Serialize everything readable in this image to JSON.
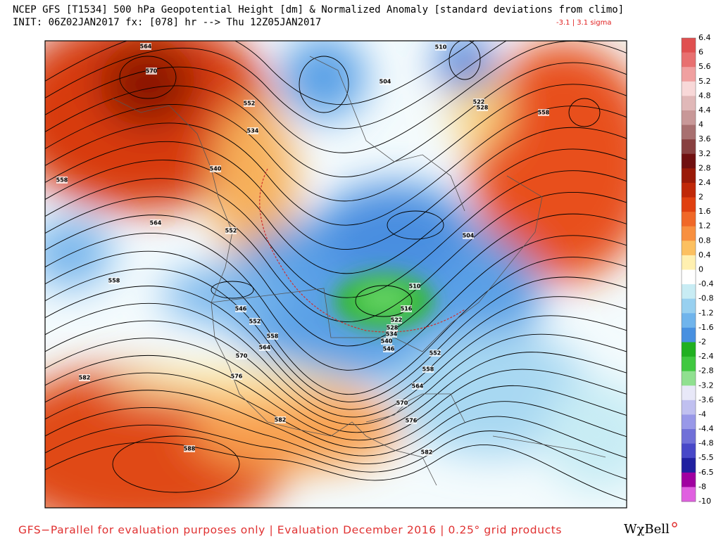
{
  "header": {
    "title": "NCEP GFS [T1534] 500 hPa Geopotential Height [dm] & Normalized Anomaly [standard deviations from climo]",
    "init": "INIT: 06Z02JAN2017 fx: [078] hr --> Thu 12Z05JAN2017",
    "range": "-3.1 | 3.1 sigma"
  },
  "colorbar": {
    "labels": [
      "6.4",
      "6",
      "5.6",
      "5.2",
      "4.8",
      "4.4",
      "4",
      "3.6",
      "3.2",
      "2.8",
      "2.4",
      "2",
      "1.6",
      "1.2",
      "0.8",
      "0.4",
      "0",
      "-0.4",
      "-0.8",
      "-1.2",
      "-1.6",
      "-2",
      "-2.4",
      "-2.8",
      "-3.2",
      "-3.6",
      "-4",
      "-4.4",
      "-4.8",
      "-5.5",
      "-6.5",
      "-8",
      "-10"
    ],
    "colors": [
      "#e05050",
      "#e87070",
      "#f0a0a0",
      "#f8d8d8",
      "#e0b8b8",
      "#c89898",
      "#a87070",
      "#884040",
      "#701010",
      "#9a1a08",
      "#c02808",
      "#e04010",
      "#f06828",
      "#f89040",
      "#fcc060",
      "#fff0b0",
      "#ffffff",
      "#c8ecf4",
      "#98d0f0",
      "#70b4ec",
      "#4890e0",
      "#20b020",
      "#40c840",
      "#90e090",
      "#e8e8f8",
      "#c0c0f0",
      "#9898e8",
      "#7070d8",
      "#4848c8",
      "#2020a0",
      "#a000a0",
      "#e060e0"
    ]
  },
  "map": {
    "contour_labels": [
      "564",
      "570",
      "552",
      "534",
      "540",
      "558",
      "564",
      "552",
      "558",
      "546",
      "552",
      "558",
      "564",
      "570",
      "576",
      "582",
      "582",
      "588",
      "576",
      "582",
      "570",
      "564",
      "558",
      "552",
      "546",
      "540",
      "534",
      "528",
      "522",
      "516",
      "510",
      "504",
      "504",
      "510",
      "522",
      "528",
      "558"
    ]
  },
  "footer": {
    "text": "GFS−Parallel for evaluation purposes only | Evaluation December 2016 | 0.25° grid products",
    "logo": "WχBell"
  }
}
